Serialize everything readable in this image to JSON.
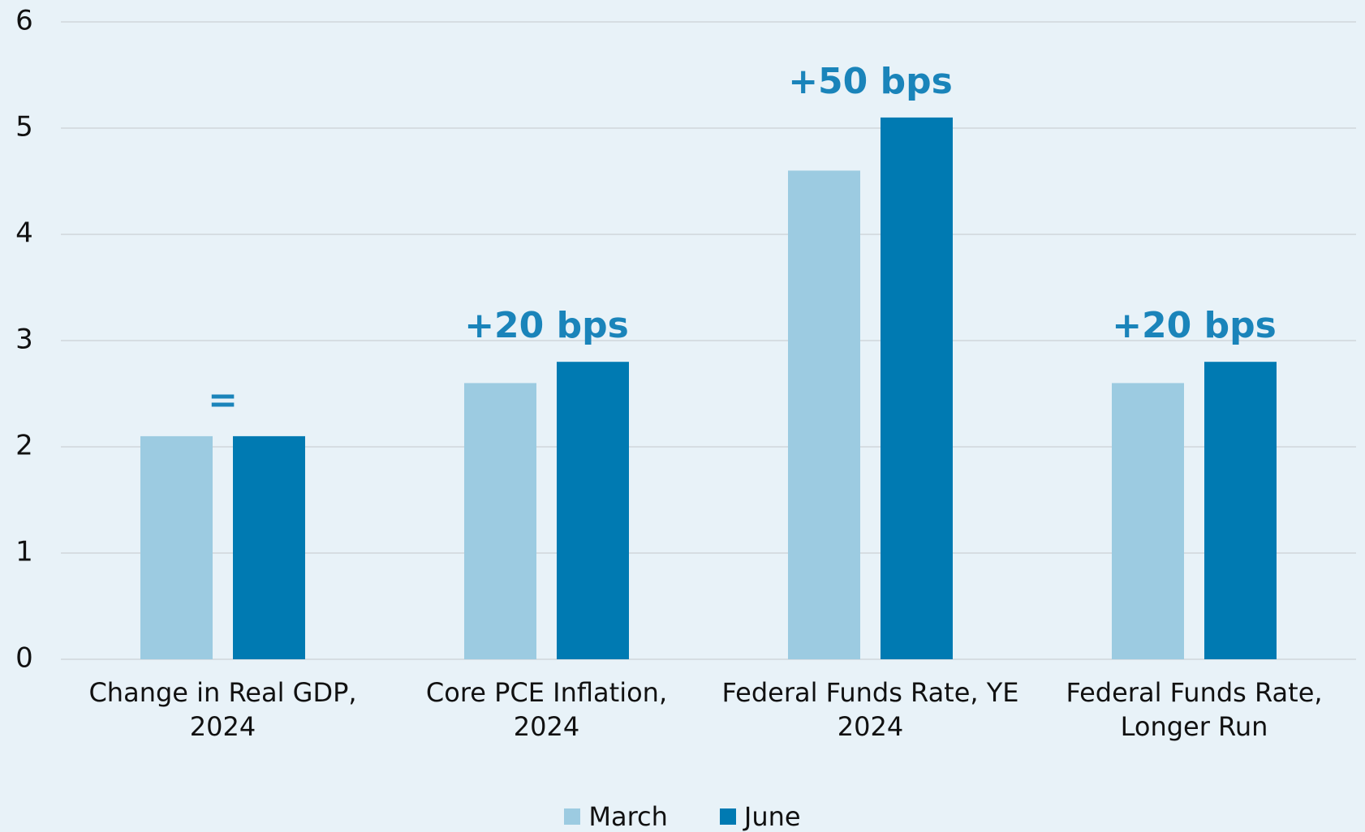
{
  "chart_data": {
    "type": "bar",
    "categories": [
      "Change in Real GDP, 2024",
      "Core PCE Inflation, 2024",
      "Federal Funds Rate, YE 2024",
      "Federal Funds Rate, Longer Run"
    ],
    "series": [
      {
        "name": "March",
        "color": "#9ccbe1",
        "values": [
          2.1,
          2.6,
          4.6,
          2.6
        ]
      },
      {
        "name": "June",
        "color": "#007ab2",
        "values": [
          2.1,
          2.8,
          5.1,
          2.8
        ]
      }
    ],
    "annotations": [
      "=",
      "+20 bps",
      "+50 bps",
      "+20 bps"
    ],
    "annotation_color": "#1a84ba",
    "ylim": [
      0,
      6
    ],
    "yticks": [
      0,
      1,
      2,
      3,
      4,
      5,
      6
    ],
    "grid": true,
    "legend": "bottom"
  }
}
